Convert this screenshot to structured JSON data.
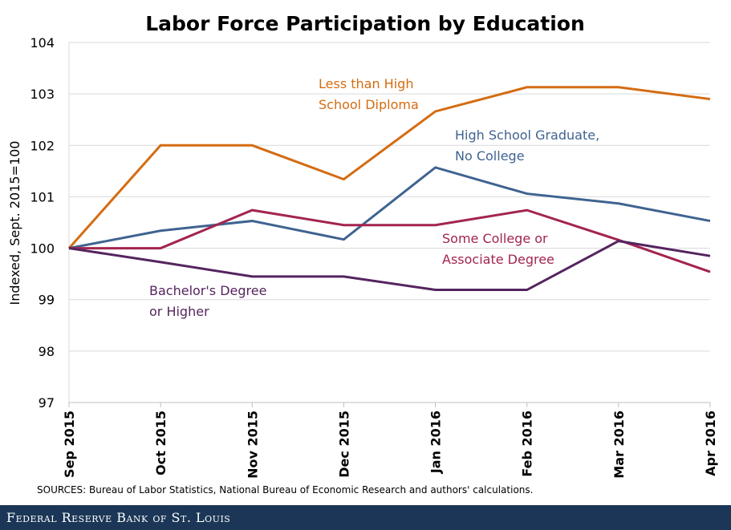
{
  "chart_data": {
    "type": "line",
    "title": "Labor Force Participation by Education",
    "ylabel": "Indexed, Sept. 2015=100",
    "xlabel": "",
    "ylim": [
      97,
      104
    ],
    "yticks": [
      "97",
      "98",
      "99",
      "100",
      "101",
      "102",
      "103",
      "104"
    ],
    "categories": [
      "Sep 2015",
      "Oct 2015",
      "Nov 2015",
      "Dec 2015",
      "Jan 2016",
      "Feb 2016",
      "Mar 2016",
      "Apr 2016"
    ],
    "grid": "horizontal",
    "series": [
      {
        "name": "Less than High School Diploma",
        "label_lines": [
          "Less than High",
          "School Diploma"
        ],
        "color": "#d46c12",
        "values": [
          100,
          102.0,
          102.0,
          101.34,
          102.66,
          103.13,
          103.13,
          102.9
        ]
      },
      {
        "name": "High School Graduate, No College",
        "label_lines": [
          "High School Graduate,",
          "No College"
        ],
        "color": "#3f6391",
        "values": [
          100,
          100.34,
          100.53,
          100.17,
          101.57,
          101.06,
          100.87,
          100.53
        ]
      },
      {
        "name": "Some College or Associate Degree",
        "label_lines": [
          "Some College or",
          "Associate Degree"
        ],
        "color": "#a3244f",
        "values": [
          100,
          100.0,
          100.74,
          100.45,
          100.45,
          100.74,
          100.16,
          99.54
        ]
      },
      {
        "name": "Bachelor's Degree or Higher",
        "label_lines": [
          "Bachelor's Degree",
          "or Higher"
        ],
        "color": "#55245f",
        "values": [
          100,
          99.73,
          99.45,
          99.45,
          99.19,
          99.19,
          100.14,
          99.85
        ]
      }
    ]
  },
  "source": "SOURCES: Bureau of Labor Statistics, National Bureau of Economic Research and authors' calculations.",
  "footer": "Federal Reserve Bank of St. Louis"
}
